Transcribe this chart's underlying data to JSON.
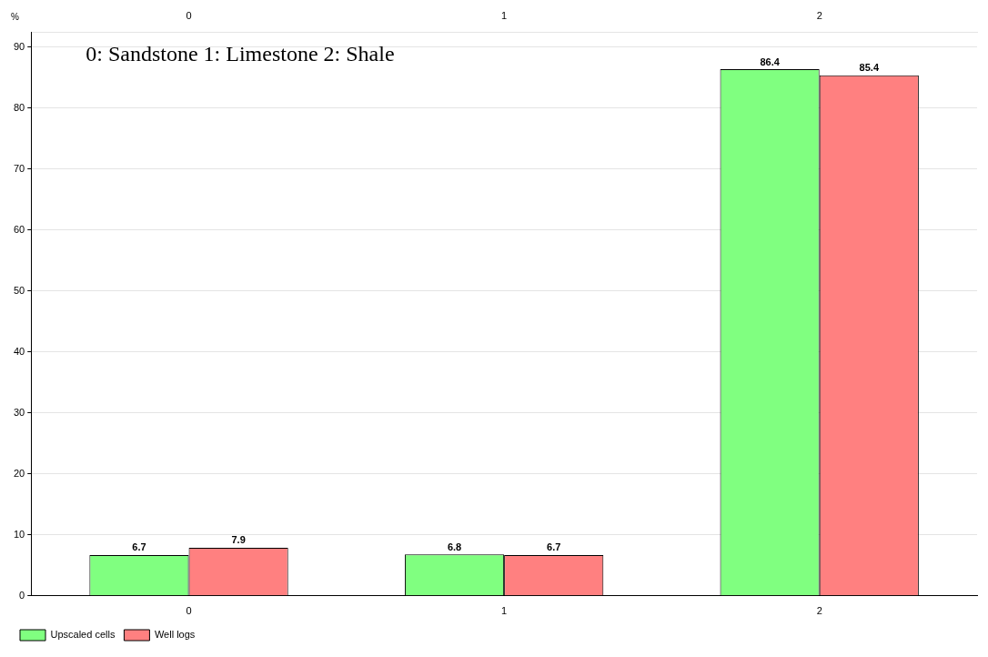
{
  "chart_data": {
    "type": "bar",
    "ylabel": "%",
    "categories": [
      "0",
      "1",
      "2"
    ],
    "series": [
      {
        "name": "Upscaled cells",
        "color": "#80ff80",
        "values": [
          6.7,
          6.8,
          86.4
        ]
      },
      {
        "name": "Well logs",
        "color": "#ff8080",
        "values": [
          7.9,
          6.7,
          85.4
        ]
      }
    ],
    "ylim": [
      0,
      92.5
    ],
    "yticks": [
      0,
      10,
      20,
      30,
      40,
      50,
      60,
      70,
      80,
      90
    ],
    "grid": "y",
    "legend": "bottom left",
    "data_labels": true,
    "annotations": [
      "0: Sandstone 1: Limestone 2: Shale"
    ]
  }
}
